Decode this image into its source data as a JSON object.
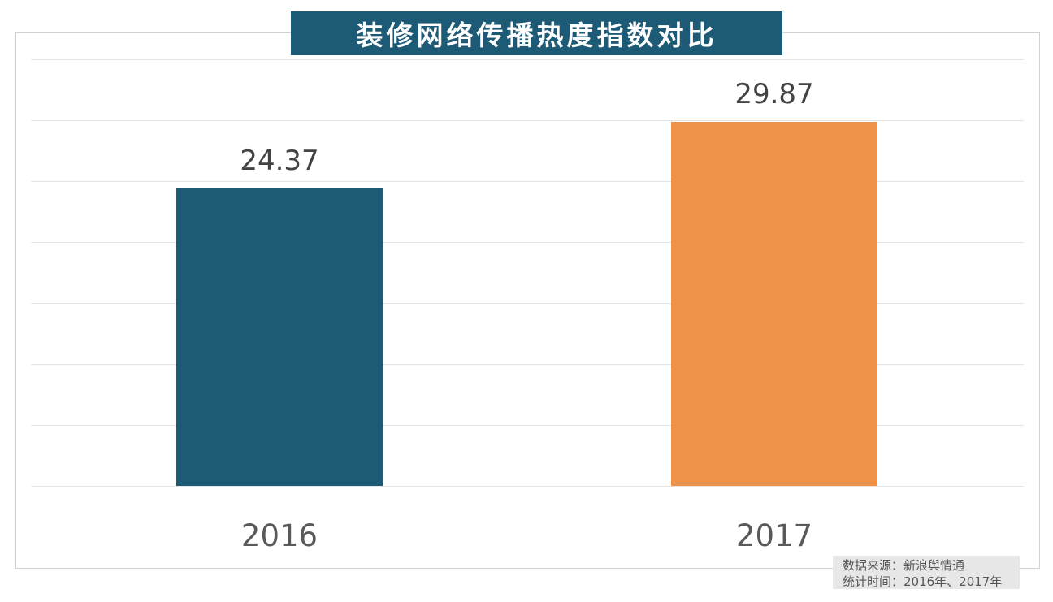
{
  "chart_data": {
    "type": "bar",
    "title": "装修网络传播热度指数对比",
    "categories": [
      "2016",
      "2017"
    ],
    "values": [
      24.37,
      29.87
    ],
    "value_labels": [
      "24.37",
      "29.87"
    ],
    "bar_colors": [
      "#1d5a75",
      "#ee9249"
    ],
    "xlabel": "",
    "ylabel": "",
    "ylim": [
      0,
      35
    ],
    "grid_step": 5,
    "grid": "horizontal-only",
    "legend_position": "none",
    "y_tick_labels_visible": false
  },
  "title_banner": {
    "text": "装修网络传播热度指数对比",
    "background": "#1d5a75",
    "text_color": "#ffffff"
  },
  "source_note": {
    "line1": "数据来源：新浪舆情通",
    "line2": "统计时间：2016年、2017年",
    "background": "#e7e7e7",
    "text_color": "#555555"
  }
}
